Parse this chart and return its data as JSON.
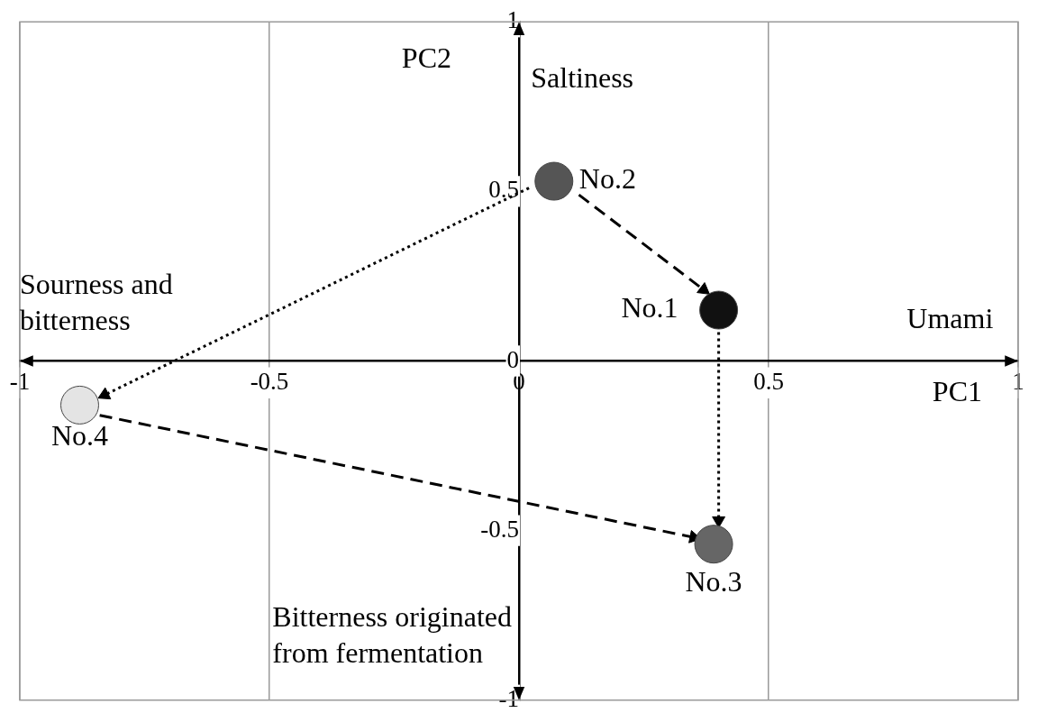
{
  "chart_data": {
    "type": "scatter",
    "xlabel": "PC1",
    "ylabel": "PC2",
    "xlim": [
      -1,
      1
    ],
    "ylim": [
      -1,
      1
    ],
    "xticks": [
      -1,
      -0.5,
      0,
      0.5,
      1
    ],
    "yticks": [
      -1,
      -0.5,
      0,
      0.5,
      1
    ],
    "grid": "x",
    "marker": "circle",
    "series": [
      {
        "x": [
          0.4,
          0.07,
          0.39,
          -0.88
        ],
        "values": [
          0.15,
          0.53,
          -0.54,
          -0.13
        ],
        "colors": [
          "#111111",
          "#555555",
          "#666666",
          "#e4e4e4"
        ]
      },
      {
        "type": "line",
        "x": [
          0.12,
          0.37
        ],
        "values": [
          0.49,
          0.21
        ],
        "color": "#000000",
        "line_style": "dashed",
        "marker": "triangle"
      },
      {
        "type": "line",
        "x": [
          0.4,
          0.4
        ],
        "values": [
          0.085,
          -0.47
        ],
        "color": "#000000",
        "line_style": "dotted",
        "marker": "triangle"
      },
      {
        "type": "line",
        "x": [
          -0.84,
          0.35
        ],
        "values": [
          -0.16,
          -0.52
        ],
        "color": "#000000",
        "line_style": "dashed",
        "marker": "triangle"
      },
      {
        "type": "line",
        "x": [
          0.02,
          -0.83
        ],
        "values": [
          0.51,
          -0.1
        ],
        "color": "#000000",
        "line_style": "dotted",
        "marker": "triangle"
      }
    ],
    "annotations": [
      {
        "text": "No.1",
        "x": 0.4,
        "y": 0.15
      },
      {
        "text": "No.2",
        "x": 0.07,
        "y": 0.53
      },
      {
        "text": "No.3",
        "x": 0.39,
        "y": -0.54
      },
      {
        "text": "No.4",
        "x": -0.88,
        "y": -0.13
      },
      "Saltiness",
      "Umami",
      "Sourness and bitterness",
      "Bitterness originated from fermentation"
    ]
  }
}
